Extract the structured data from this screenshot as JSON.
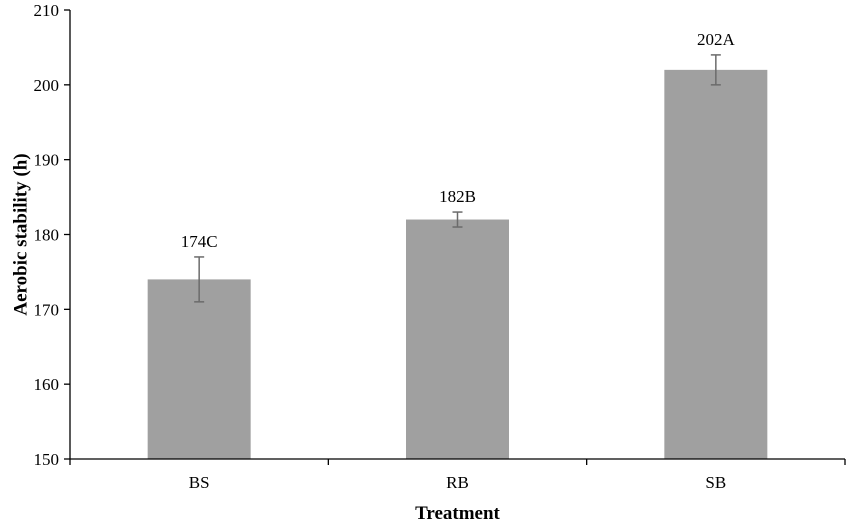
{
  "chart_data": {
    "type": "bar",
    "categories": [
      "BS",
      "RB",
      "SB"
    ],
    "values": [
      174,
      182,
      202
    ],
    "error": [
      3,
      1,
      2
    ],
    "data_labels": [
      "174C",
      "182B",
      "202A"
    ],
    "xlabel": "Treatment",
    "ylabel": "Aerobic stability (h)",
    "ylim": [
      150,
      210
    ],
    "yticks": [
      150,
      160,
      170,
      180,
      190,
      200,
      210
    ],
    "bar_color": "#a0a0a0",
    "grid": false
  }
}
